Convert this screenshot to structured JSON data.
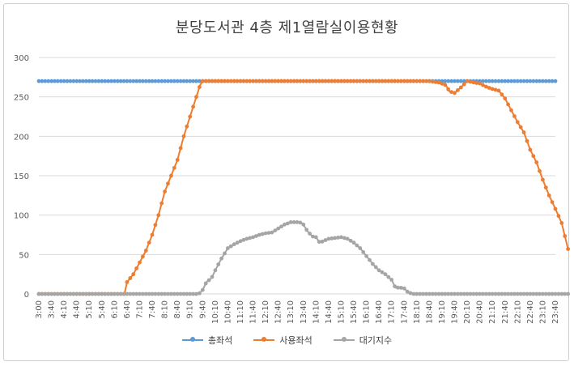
{
  "chart_data": {
    "type": "line",
    "title": "분당도서관 4층 제1열람실이용현황",
    "xlabel": "",
    "ylabel": "",
    "ylim": [
      0,
      300
    ],
    "yticks": [
      0,
      50,
      100,
      150,
      200,
      250,
      300
    ],
    "grid": true,
    "legend_position": "bottom",
    "x": [
      "3:00",
      "3:40",
      "4:10",
      "4:40",
      "5:10",
      "5:40",
      "6:10",
      "6:40",
      "7:10",
      "7:40",
      "8:10",
      "8:40",
      "9:10",
      "9:40",
      "10:10",
      "10:40",
      "11:10",
      "11:40",
      "12:10",
      "12:40",
      "13:10",
      "13:40",
      "14:10",
      "14:40",
      "15:10",
      "15:40",
      "16:10",
      "16:40",
      "17:10",
      "17:40",
      "18:10",
      "18:40",
      "19:10",
      "19:40",
      "20:10",
      "20:40",
      "21:10",
      "21:40",
      "22:10",
      "22:40",
      "23:10",
      "23:40"
    ],
    "series": [
      {
        "name": "총좌석",
        "color": "#5b9bd5",
        "points": [
          [
            0,
            270
          ],
          [
            41,
            270
          ]
        ]
      },
      {
        "name": "사용좌석",
        "color": "#ed7d31",
        "points": [
          [
            0,
            0
          ],
          [
            6.8,
            0
          ],
          [
            7,
            15
          ],
          [
            7.5,
            25
          ],
          [
            8,
            40
          ],
          [
            8.5,
            55
          ],
          [
            9,
            75
          ],
          [
            9.5,
            100
          ],
          [
            10,
            130
          ],
          [
            10.5,
            150
          ],
          [
            11,
            170
          ],
          [
            11.5,
            200
          ],
          [
            12,
            225
          ],
          [
            12.5,
            250
          ],
          [
            12.8,
            265
          ],
          [
            13,
            270
          ],
          [
            31,
            270
          ],
          [
            31.8,
            268
          ],
          [
            32.3,
            265
          ],
          [
            32.6,
            257
          ],
          [
            33,
            255
          ],
          [
            33.5,
            262
          ],
          [
            34,
            270
          ],
          [
            34.6,
            268
          ],
          [
            35,
            267
          ],
          [
            35.5,
            263
          ],
          [
            36,
            260
          ],
          [
            36.5,
            258
          ],
          [
            37,
            248
          ],
          [
            37.5,
            233
          ],
          [
            38,
            218
          ],
          [
            38.5,
            205
          ],
          [
            39,
            183
          ],
          [
            39.5,
            167
          ],
          [
            40,
            145
          ],
          [
            40.5,
            125
          ],
          [
            41,
            108
          ],
          [
            41.5,
            90
          ],
          [
            42,
            57
          ]
        ]
      },
      {
        "name": "대기지수",
        "color": "#a5a5a5",
        "points": [
          [
            0,
            0
          ],
          [
            12.7,
            0
          ],
          [
            13,
            5
          ],
          [
            13.3,
            15
          ],
          [
            13.7,
            20
          ],
          [
            14,
            30
          ],
          [
            14.5,
            45
          ],
          [
            15,
            58
          ],
          [
            15.5,
            63
          ],
          [
            16,
            67
          ],
          [
            16.5,
            70
          ],
          [
            17,
            72
          ],
          [
            17.5,
            75
          ],
          [
            18,
            77
          ],
          [
            18.5,
            78
          ],
          [
            19,
            83
          ],
          [
            19.5,
            88
          ],
          [
            20,
            91
          ],
          [
            20.7,
            91
          ],
          [
            21,
            88
          ],
          [
            21.3,
            80
          ],
          [
            21.7,
            73
          ],
          [
            22,
            72
          ],
          [
            22.3,
            65
          ],
          [
            22.7,
            68
          ],
          [
            23,
            70
          ],
          [
            23.5,
            71
          ],
          [
            24,
            72
          ],
          [
            24.5,
            70
          ],
          [
            25,
            65
          ],
          [
            25.5,
            58
          ],
          [
            26,
            48
          ],
          [
            26.5,
            38
          ],
          [
            27,
            30
          ],
          [
            27.5,
            25
          ],
          [
            28,
            18
          ],
          [
            28.3,
            8
          ],
          [
            28.7,
            8
          ],
          [
            29,
            7
          ],
          [
            29.3,
            2
          ],
          [
            29.7,
            0
          ],
          [
            42,
            0
          ]
        ]
      }
    ]
  }
}
